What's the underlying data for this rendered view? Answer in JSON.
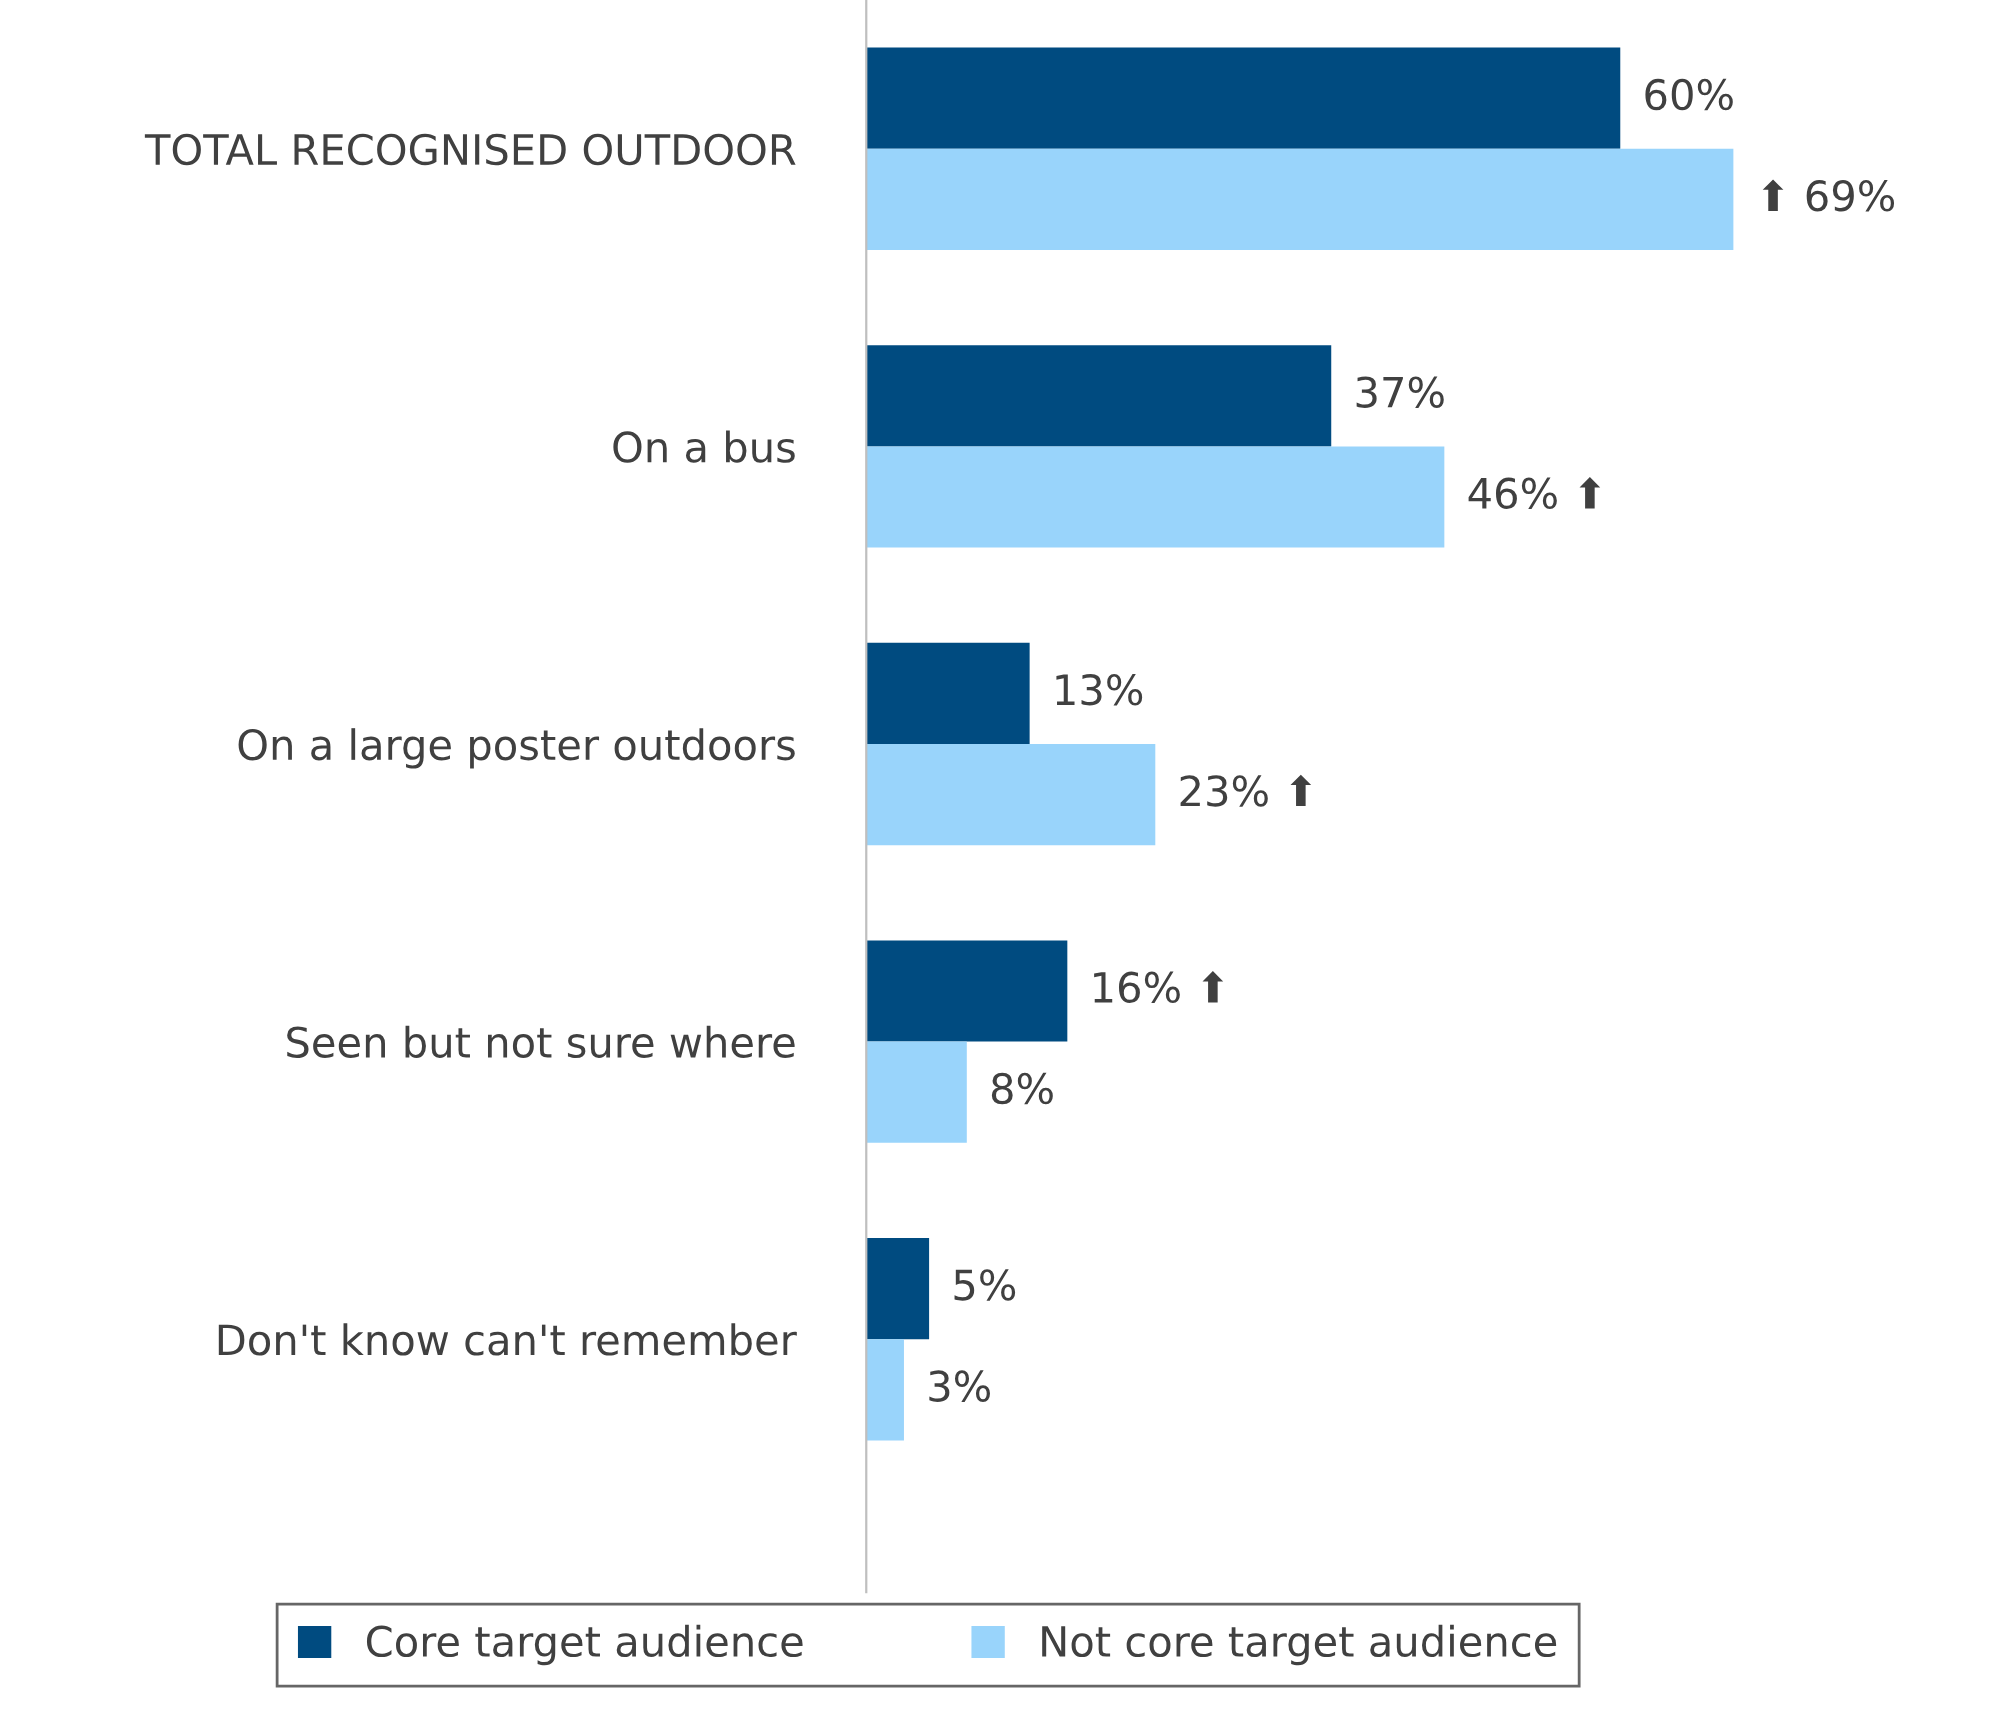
{
  "chart_data": {
    "type": "bar",
    "orientation": "horizontal",
    "categories": [
      "TOTAL RECOGNISED OUTDOOR",
      "On a bus",
      "On a large poster outdoors",
      "Seen but not sure where",
      "Don't know can't remember"
    ],
    "series": [
      {
        "name": "Core target audience",
        "color": "#004b80",
        "values": [
          60,
          37,
          13,
          16,
          5
        ],
        "value_labels": [
          "60%",
          "37%",
          "13%",
          "16% ⬆",
          "5%"
        ]
      },
      {
        "name": "Not core target audience",
        "color": "#99d4fb",
        "values": [
          69,
          46,
          23,
          8,
          3
        ],
        "value_labels": [
          "⬆ 69%",
          "46% ⬆",
          "23% ⬆",
          "8%",
          "3%"
        ]
      }
    ],
    "tick_labels": "y",
    "legend": "bottom",
    "grid": false
  }
}
